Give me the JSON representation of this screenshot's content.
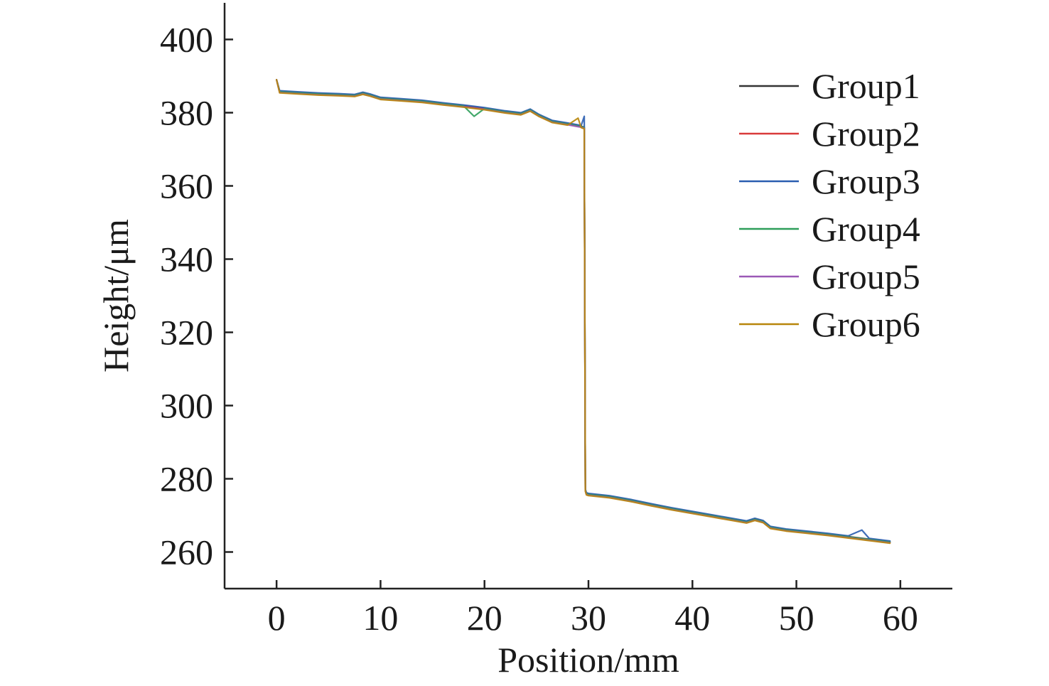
{
  "chart_data": {
    "type": "line",
    "title": "",
    "xlabel": "Position/mm",
    "ylabel": "Height/μm",
    "xlim": [
      -5,
      65
    ],
    "ylim": [
      250,
      410
    ],
    "xticks": [
      0,
      10,
      20,
      30,
      40,
      50,
      60
    ],
    "yticks": [
      260,
      280,
      300,
      320,
      340,
      360,
      380,
      400
    ],
    "grid": false,
    "legend_position": "top-right",
    "series": [
      {
        "name": "Group1",
        "color": "#333333",
        "points": [
          [
            0,
            389
          ],
          [
            0.3,
            385.8
          ],
          [
            2,
            385.5
          ],
          [
            4,
            385.2
          ],
          [
            6,
            385.0
          ],
          [
            7.5,
            384.8
          ],
          [
            8.3,
            385.4
          ],
          [
            9,
            384.9
          ],
          [
            10,
            384.0
          ],
          [
            12,
            383.6
          ],
          [
            14,
            383.2
          ],
          [
            16,
            382.5
          ],
          [
            18,
            381.9
          ],
          [
            20,
            381.2
          ],
          [
            22,
            380.3
          ],
          [
            23.5,
            379.8
          ],
          [
            24.4,
            380.8
          ],
          [
            25.2,
            379.4
          ],
          [
            26.5,
            377.7
          ],
          [
            28,
            377.0
          ],
          [
            29.3,
            376.3
          ],
          [
            29.6,
            376.0
          ],
          [
            29.7,
            277.0
          ],
          [
            29.8,
            276.0
          ],
          [
            30,
            275.8
          ],
          [
            32,
            275.2
          ],
          [
            34,
            274.2
          ],
          [
            36,
            273.0
          ],
          [
            38,
            271.9
          ],
          [
            40,
            270.9
          ],
          [
            42,
            269.9
          ],
          [
            44,
            268.9
          ],
          [
            45.2,
            268.3
          ],
          [
            46.0,
            269.0
          ],
          [
            46.8,
            268.4
          ],
          [
            47.5,
            266.8
          ],
          [
            49,
            266.1
          ],
          [
            51,
            265.5
          ],
          [
            53,
            264.9
          ],
          [
            55,
            264.2
          ],
          [
            57,
            263.5
          ],
          [
            59,
            262.8
          ]
        ]
      },
      {
        "name": "Group2",
        "color": "#d93a3a",
        "points": [
          [
            0,
            389
          ],
          [
            0.3,
            385.6
          ],
          [
            2,
            385.3
          ],
          [
            4,
            385.0
          ],
          [
            6,
            384.8
          ],
          [
            7.5,
            384.6
          ],
          [
            8.3,
            385.2
          ],
          [
            9,
            384.7
          ],
          [
            10,
            383.8
          ],
          [
            12,
            383.4
          ],
          [
            14,
            383.0
          ],
          [
            16,
            382.3
          ],
          [
            18,
            381.7
          ],
          [
            20,
            381.0
          ],
          [
            22,
            380.1
          ],
          [
            23.5,
            379.6
          ],
          [
            24.4,
            380.6
          ],
          [
            25.2,
            379.2
          ],
          [
            26.5,
            377.5
          ],
          [
            28,
            376.8
          ],
          [
            29.3,
            376.1
          ],
          [
            29.6,
            375.8
          ],
          [
            29.7,
            276.8
          ],
          [
            29.8,
            275.8
          ],
          [
            30,
            275.6
          ],
          [
            32,
            275.0
          ],
          [
            34,
            274.0
          ],
          [
            36,
            272.8
          ],
          [
            38,
            271.7
          ],
          [
            40,
            270.7
          ],
          [
            42,
            269.7
          ],
          [
            44,
            268.7
          ],
          [
            45.2,
            268.1
          ],
          [
            46.0,
            268.8
          ],
          [
            46.8,
            268.2
          ],
          [
            47.5,
            266.6
          ],
          [
            49,
            265.9
          ],
          [
            51,
            265.3
          ],
          [
            53,
            264.7
          ],
          [
            55,
            264.0
          ],
          [
            57,
            263.3
          ],
          [
            59,
            262.6
          ]
        ]
      },
      {
        "name": "Group3",
        "color": "#2a5db0",
        "points": [
          [
            0,
            389
          ],
          [
            0.3,
            386.0
          ],
          [
            2,
            385.7
          ],
          [
            4,
            385.4
          ],
          [
            6,
            385.2
          ],
          [
            7.5,
            385.0
          ],
          [
            8.3,
            385.6
          ],
          [
            9,
            385.1
          ],
          [
            10,
            384.2
          ],
          [
            12,
            383.8
          ],
          [
            14,
            383.4
          ],
          [
            16,
            382.7
          ],
          [
            18,
            382.1
          ],
          [
            20,
            381.4
          ],
          [
            22,
            380.5
          ],
          [
            23.5,
            380.0
          ],
          [
            24.4,
            381.0
          ],
          [
            25.2,
            379.6
          ],
          [
            26.5,
            377.9
          ],
          [
            28,
            377.2
          ],
          [
            29.3,
            376.5
          ],
          [
            29.6,
            379.0
          ],
          [
            29.7,
            277.2
          ],
          [
            29.8,
            276.2
          ],
          [
            30,
            276.0
          ],
          [
            32,
            275.4
          ],
          [
            34,
            274.4
          ],
          [
            36,
            273.2
          ],
          [
            38,
            272.1
          ],
          [
            40,
            271.1
          ],
          [
            42,
            270.1
          ],
          [
            44,
            269.1
          ],
          [
            45.2,
            268.5
          ],
          [
            46.0,
            269.2
          ],
          [
            46.8,
            268.6
          ],
          [
            47.5,
            267.0
          ],
          [
            49,
            266.3
          ],
          [
            51,
            265.7
          ],
          [
            53,
            265.1
          ],
          [
            55,
            264.4
          ],
          [
            56.3,
            266.0
          ],
          [
            57,
            263.7
          ],
          [
            59,
            263.0
          ]
        ]
      },
      {
        "name": "Group4",
        "color": "#2e9e5a",
        "points": [
          [
            0,
            389
          ],
          [
            0.3,
            385.7
          ],
          [
            2,
            385.4
          ],
          [
            4,
            385.1
          ],
          [
            6,
            384.9
          ],
          [
            7.5,
            384.7
          ],
          [
            8.3,
            385.3
          ],
          [
            9,
            384.8
          ],
          [
            10,
            383.9
          ],
          [
            12,
            383.5
          ],
          [
            14,
            383.1
          ],
          [
            16,
            382.4
          ],
          [
            18,
            381.8
          ],
          [
            19,
            379.0
          ],
          [
            20,
            381.1
          ],
          [
            22,
            380.2
          ],
          [
            23.5,
            379.7
          ],
          [
            24.4,
            380.7
          ],
          [
            25.2,
            379.3
          ],
          [
            26.5,
            377.6
          ],
          [
            28,
            376.9
          ],
          [
            29.3,
            376.2
          ],
          [
            29.6,
            375.9
          ],
          [
            29.7,
            276.9
          ],
          [
            29.8,
            275.9
          ],
          [
            30,
            275.7
          ],
          [
            32,
            275.1
          ],
          [
            34,
            274.1
          ],
          [
            36,
            272.9
          ],
          [
            38,
            271.8
          ],
          [
            40,
            270.8
          ],
          [
            42,
            269.8
          ],
          [
            44,
            268.8
          ],
          [
            45.2,
            268.2
          ],
          [
            46.0,
            268.9
          ],
          [
            46.8,
            268.3
          ],
          [
            47.5,
            266.7
          ],
          [
            49,
            266.0
          ],
          [
            51,
            265.4
          ],
          [
            53,
            264.8
          ],
          [
            55,
            264.1
          ],
          [
            57,
            263.4
          ],
          [
            59,
            262.7
          ]
        ]
      },
      {
        "name": "Group5",
        "color": "#9b59b6",
        "points": [
          [
            0,
            389
          ],
          [
            0.3,
            385.5
          ],
          [
            2,
            385.2
          ],
          [
            4,
            384.9
          ],
          [
            6,
            384.7
          ],
          [
            7.5,
            384.5
          ],
          [
            8.3,
            385.1
          ],
          [
            9,
            384.6
          ],
          [
            10,
            383.7
          ],
          [
            12,
            383.3
          ],
          [
            14,
            382.9
          ],
          [
            16,
            382.2
          ],
          [
            18,
            381.6
          ],
          [
            20,
            380.9
          ],
          [
            22,
            380.0
          ],
          [
            23.5,
            379.5
          ],
          [
            24.4,
            380.5
          ],
          [
            25.2,
            379.1
          ],
          [
            26.5,
            377.4
          ],
          [
            28,
            376.7
          ],
          [
            29.3,
            376.0
          ],
          [
            29.6,
            375.7
          ],
          [
            29.7,
            276.7
          ],
          [
            29.8,
            275.7
          ],
          [
            30,
            275.5
          ],
          [
            32,
            274.9
          ],
          [
            34,
            273.9
          ],
          [
            36,
            272.7
          ],
          [
            38,
            271.6
          ],
          [
            40,
            270.6
          ],
          [
            42,
            269.6
          ],
          [
            44,
            268.6
          ],
          [
            45.2,
            268.0
          ],
          [
            46.0,
            268.7
          ],
          [
            46.8,
            268.1
          ],
          [
            47.5,
            266.5
          ],
          [
            49,
            265.8
          ],
          [
            51,
            265.2
          ],
          [
            53,
            264.6
          ],
          [
            55,
            263.9
          ],
          [
            57,
            263.2
          ],
          [
            59,
            262.5
          ]
        ]
      },
      {
        "name": "Group6",
        "color": "#b8860b",
        "points": [
          [
            0,
            389
          ],
          [
            0.3,
            385.4
          ],
          [
            2,
            385.1
          ],
          [
            4,
            384.8
          ],
          [
            6,
            384.6
          ],
          [
            7.5,
            384.4
          ],
          [
            8.3,
            385.0
          ],
          [
            9,
            384.5
          ],
          [
            10,
            383.6
          ],
          [
            12,
            383.2
          ],
          [
            14,
            382.8
          ],
          [
            16,
            382.1
          ],
          [
            18,
            381.5
          ],
          [
            20,
            380.8
          ],
          [
            22,
            379.9
          ],
          [
            23.5,
            379.4
          ],
          [
            24.4,
            380.4
          ],
          [
            25.2,
            379.0
          ],
          [
            26.5,
            377.3
          ],
          [
            28,
            376.6
          ],
          [
            29.0,
            378.5
          ],
          [
            29.3,
            375.9
          ],
          [
            29.6,
            375.6
          ],
          [
            29.7,
            276.6
          ],
          [
            29.8,
            275.6
          ],
          [
            30,
            275.4
          ],
          [
            32,
            274.8
          ],
          [
            34,
            273.8
          ],
          [
            36,
            272.6
          ],
          [
            38,
            271.5
          ],
          [
            40,
            270.5
          ],
          [
            42,
            269.5
          ],
          [
            44,
            268.5
          ],
          [
            45.2,
            267.9
          ],
          [
            46.0,
            268.6
          ],
          [
            46.8,
            268.0
          ],
          [
            47.5,
            266.4
          ],
          [
            49,
            265.7
          ],
          [
            51,
            265.1
          ],
          [
            53,
            264.5
          ],
          [
            55,
            263.8
          ],
          [
            57,
            263.1
          ],
          [
            59,
            262.4
          ]
        ]
      }
    ]
  }
}
